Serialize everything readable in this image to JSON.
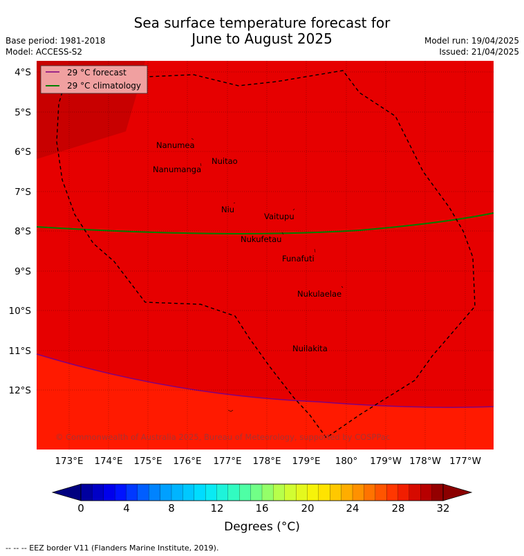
{
  "title_line1": "Sea surface temperature forecast for",
  "title_line2": "June to August 2025",
  "meta": {
    "base_period": "Base period: 1981-2018",
    "model": "Model: ACCESS-S2",
    "model_run": "Model run: 19/04/2025",
    "issued": "Issued: 21/04/2025"
  },
  "legend": {
    "forecast": "29 °C  forecast",
    "climatology": "29 °C  climatology"
  },
  "lat_labels": [
    "4°S",
    "5°S",
    "6°S",
    "7°S",
    "8°S",
    "9°S",
    "10°S",
    "11°S",
    "12°S"
  ],
  "lon_labels": [
    "173°E",
    "174°E",
    "175°E",
    "176°E",
    "177°E",
    "178°E",
    "179°E",
    "180°",
    "179°W",
    "178°W",
    "177°W"
  ],
  "places": [
    {
      "name": "Nanumea"
    },
    {
      "name": "Nuitao"
    },
    {
      "name": "Nanumanga"
    },
    {
      "name": "Niu"
    },
    {
      "name": "Vaitupu"
    },
    {
      "name": "Nukufetau"
    },
    {
      "name": "Funafuti"
    },
    {
      "name": "Nukulaelae"
    },
    {
      "name": "Nuilakita"
    }
  ],
  "copyright": "© Commonwealth of Australia 2025, Bureau of Meteorology, supported by COSPPac",
  "colorbar": {
    "ticks": [
      "0",
      "4",
      "8",
      "12",
      "16",
      "20",
      "24",
      "28",
      "32"
    ],
    "label": "Degrees (°C)"
  },
  "footnote": "--  --  -- EEZ border V11 (Flanders Marine Institute, 2019).",
  "colors": {
    "sst_29_30": "#e60000",
    "sst_30_31": "#c80000",
    "sst_28_29": "#ff1a00",
    "forecast_line": "#800080",
    "climatology_line": "#008000"
  }
}
